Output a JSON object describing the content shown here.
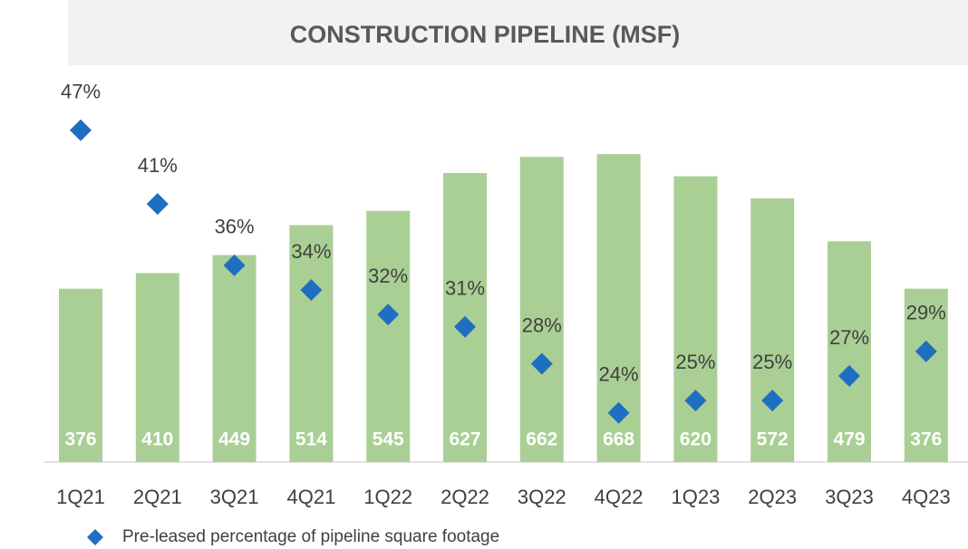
{
  "chart_data": {
    "type": "bar",
    "title": "CONSTRUCTION PIPELINE (MSF)",
    "categories": [
      "1Q21",
      "2Q21",
      "3Q21",
      "4Q21",
      "1Q22",
      "2Q22",
      "3Q22",
      "4Q22",
      "1Q23",
      "2Q23",
      "3Q23",
      "4Q23"
    ],
    "series": [
      {
        "type": "bar",
        "color": "#a9cf95",
        "values": [
          376,
          410,
          449,
          514,
          545,
          627,
          662,
          668,
          620,
          572,
          479,
          376
        ]
      },
      {
        "type": "scatter",
        "name": "Pre-leased percentage of pipeline square footage",
        "color": "#1f6fc1",
        "axis": "y2",
        "values": [
          47,
          41,
          36,
          34,
          32,
          31,
          28,
          24,
          25,
          25,
          27,
          29
        ],
        "value_labels": [
          "47%",
          "41%",
          "36%",
          "34%",
          "32%",
          "31%",
          "28%",
          "24%",
          "25%",
          "25%",
          "27%",
          "29%"
        ]
      }
    ],
    "ylim": [
      0,
      800
    ],
    "y2lim": [
      20,
      50
    ],
    "legend": "bottom-left"
  }
}
